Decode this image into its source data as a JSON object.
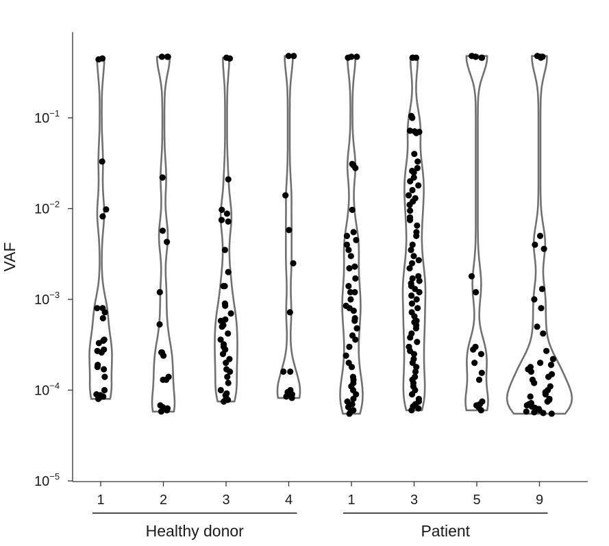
{
  "chart_data": {
    "type": "scatter",
    "subtype": "violin-strip",
    "y_scale": "log",
    "ylabel": "VAF",
    "ylim": [
      1e-05,
      0.6
    ],
    "y_ticks": [
      {
        "value": 0.1,
        "base": "10",
        "exp": "−1"
      },
      {
        "value": 0.01,
        "base": "10",
        "exp": "−2"
      },
      {
        "value": 0.001,
        "base": "10",
        "exp": "−3"
      },
      {
        "value": 0.0001,
        "base": "10",
        "exp": "−4"
      },
      {
        "value": 1e-05,
        "base": "10",
        "exp": "−5"
      }
    ],
    "groups": [
      {
        "label": "Healthy donor",
        "first": 0,
        "last": 3
      },
      {
        "label": "Patient",
        "first": 4,
        "last": 7
      }
    ],
    "series": [
      {
        "name": "1",
        "group": "Healthy donor",
        "min": 8e-05,
        "max": 0.45,
        "values": [
          0.45,
          0.44,
          0.033,
          0.0098,
          0.0082,
          0.0008,
          0.0008,
          0.00072,
          0.00062,
          0.00036,
          0.00035,
          0.00033,
          0.00028,
          0.00027,
          0.00026,
          0.00019,
          0.00018,
          0.00017,
          0.00014,
          0.0001,
          9e-05,
          8.8e-05,
          8.5e-05,
          8.2e-05,
          8e-05
        ]
      },
      {
        "name": "2",
        "group": "Healthy donor",
        "min": 5.8e-05,
        "max": 0.47,
        "values": [
          0.47,
          0.47,
          0.47,
          0.022,
          0.0057,
          0.0043,
          0.0012,
          0.00053,
          0.00026,
          0.00026,
          0.00024,
          0.00014,
          0.00013,
          0.00013,
          6.8e-05,
          6.5e-05,
          6.3e-05,
          6e-05,
          5.8e-05
        ]
      },
      {
        "name": "3",
        "group": "Healthy donor",
        "min": 7.5e-05,
        "max": 0.46,
        "values": [
          0.46,
          0.45,
          0.021,
          0.0097,
          0.0088,
          0.0075,
          0.0072,
          0.0035,
          0.002,
          0.0014,
          0.0014,
          0.0009,
          0.00085,
          0.0007,
          0.0006,
          0.00058,
          0.00052,
          0.0005,
          0.00042,
          0.00036,
          0.00032,
          0.0003,
          0.00028,
          0.00025,
          0.00022,
          0.0002,
          0.00017,
          0.00016,
          0.00014,
          0.00012,
          0.0001,
          9.2e-05,
          8.8e-05,
          8.2e-05,
          7.8e-05,
          7.5e-05
        ]
      },
      {
        "name": "4",
        "group": "Healthy donor",
        "min": 8.2e-05,
        "max": 0.48,
        "values": [
          0.48,
          0.48,
          0.014,
          0.0058,
          0.0025,
          0.00072,
          0.00016,
          0.00016,
          0.0001,
          9.5e-05,
          9e-05,
          8.8e-05,
          8.5e-05,
          8.2e-05
        ]
      },
      {
        "name": "1",
        "group": "Patient",
        "min": 5.5e-05,
        "max": 0.47,
        "values": [
          0.47,
          0.47,
          0.46,
          0.031,
          0.03,
          0.028,
          0.0097,
          0.0055,
          0.005,
          0.0045,
          0.004,
          0.0035,
          0.003,
          0.0023,
          0.0022,
          0.0017,
          0.0014,
          0.0012,
          0.0012,
          0.001,
          0.00085,
          0.0008,
          0.00075,
          0.00062,
          0.00058,
          0.00048,
          0.0004,
          0.00036,
          0.0003,
          0.00024,
          0.0002,
          0.00018,
          0.00014,
          0.00013,
          0.00012,
          0.00011,
          0.0001,
          9e-05,
          8e-05,
          7.5e-05,
          7e-05,
          6.5e-05,
          6e-05,
          5.8e-05,
          5.5e-05
        ]
      },
      {
        "name": "3",
        "group": "Patient",
        "min": 6e-05,
        "max": 0.46,
        "values": [
          0.46,
          0.46,
          0.46,
          0.105,
          0.1,
          0.072,
          0.071,
          0.07,
          0.068,
          0.04,
          0.033,
          0.028,
          0.026,
          0.025,
          0.022,
          0.02,
          0.018,
          0.016,
          0.014,
          0.013,
          0.012,
          0.011,
          0.0095,
          0.008,
          0.0075,
          0.0065,
          0.0055,
          0.005,
          0.004,
          0.0035,
          0.003,
          0.0027,
          0.0025,
          0.0022,
          0.0018,
          0.0017,
          0.0016,
          0.0015,
          0.0014,
          0.0013,
          0.0012,
          0.0011,
          0.001,
          0.0009,
          0.0008,
          0.00072,
          0.00065,
          0.00058,
          0.00056,
          0.00052,
          0.00048,
          0.00042,
          0.00038,
          0.00034,
          0.0003,
          0.00027,
          0.00025,
          0.00022,
          0.0002,
          0.00018,
          0.00016,
          0.00014,
          0.00013,
          0.00012,
          0.00011,
          0.0001,
          9e-05,
          8e-05,
          7.5e-05,
          7e-05,
          6.6e-05,
          6.3e-05,
          6e-05
        ]
      },
      {
        "name": "5",
        "group": "Patient",
        "min": 6e-05,
        "max": 0.48,
        "values": [
          0.48,
          0.47,
          0.47,
          0.46,
          0.46,
          0.0018,
          0.0012,
          0.0003,
          0.00028,
          0.00025,
          0.0002,
          0.000155,
          0.00013,
          7.5e-05,
          7e-05,
          6.8e-05,
          6.5e-05,
          6e-05
        ]
      },
      {
        "name": "9",
        "group": "Patient",
        "min": 5.5e-05,
        "max": 0.48,
        "values": [
          0.48,
          0.47,
          0.47,
          0.46,
          0.005,
          0.004,
          0.0036,
          0.0013,
          0.001,
          0.0008,
          0.0005,
          0.00042,
          0.00027,
          0.00022,
          0.0002,
          0.00019,
          0.00018,
          0.00017,
          0.00016,
          0.00015,
          0.00014,
          0.00013,
          0.00012,
          0.00011,
          0.0001,
          9.5e-05,
          9e-05,
          8.5e-05,
          8e-05,
          7.8e-05,
          7.5e-05,
          7.2e-05,
          7e-05,
          6.8e-05,
          6.6e-05,
          6.4e-05,
          6.2e-05,
          6e-05,
          5.8e-05,
          5.7e-05,
          5.6e-05,
          5.5e-05
        ]
      }
    ],
    "colors": {
      "points": "#000000",
      "violin": "#707070",
      "axis": "#333333"
    },
    "grid": false
  }
}
